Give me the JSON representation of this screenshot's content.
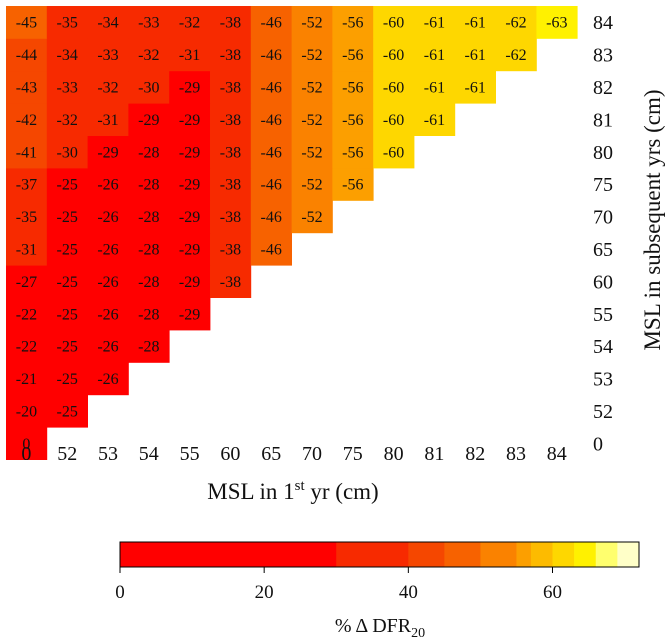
{
  "chart_data": {
    "type": "heatmap",
    "x_categories": [
      "0",
      "52",
      "53",
      "54",
      "55",
      "60",
      "65",
      "70",
      "75",
      "80",
      "81",
      "82",
      "83",
      "84"
    ],
    "y_categories": [
      "0",
      "52",
      "53",
      "54",
      "55",
      "60",
      "65",
      "70",
      "75",
      "80",
      "81",
      "82",
      "83",
      "84"
    ],
    "xlabel": "MSL in 1",
    "xlabel_sup": "st",
    "xlabel_suffix": " yr (cm)",
    "ylabel": "MSL in subsequent yrs (cm)",
    "cells": [
      [
        0
      ],
      [
        -20,
        -25
      ],
      [
        -21,
        -25,
        -26
      ],
      [
        -22,
        -25,
        -26,
        -28
      ],
      [
        -22,
        -25,
        -26,
        -28,
        -29
      ],
      [
        -27,
        -25,
        -26,
        -28,
        -29,
        -38
      ],
      [
        -31,
        -25,
        -26,
        -28,
        -29,
        -38,
        -46
      ],
      [
        -35,
        -25,
        -26,
        -28,
        -29,
        -38,
        -46,
        -52
      ],
      [
        -37,
        -25,
        -26,
        -28,
        -29,
        -38,
        -46,
        -52,
        -56
      ],
      [
        -41,
        -30,
        -29,
        -28,
        -29,
        -38,
        -46,
        -52,
        -56,
        -60
      ],
      [
        -42,
        -32,
        -31,
        -29,
        -29,
        -38,
        -46,
        -52,
        -56,
        -60,
        -61
      ],
      [
        -43,
        -33,
        -32,
        -30,
        -29,
        -38,
        -46,
        -52,
        -56,
        -60,
        -61,
        -61
      ],
      [
        -44,
        -34,
        -33,
        -32,
        -31,
        -38,
        -46,
        -52,
        -56,
        -60,
        -61,
        -61,
        -62
      ],
      [
        -45,
        -35,
        -34,
        -33,
        -32,
        -38,
        -46,
        -52,
        -56,
        -60,
        -61,
        -61,
        -62,
        -63
      ]
    ],
    "colorbar": {
      "label": "% Δ DFR",
      "label_sub": "20",
      "ticks": [
        "0",
        "20",
        "40",
        "60"
      ],
      "range": [
        0,
        72
      ],
      "colors": [
        "#ff0000",
        "#f72a00",
        "#f54700",
        "#f76200",
        "#fa8200",
        "#fc9f00",
        "#fdbb00",
        "#fed700",
        "#fff100",
        "#ffff6e",
        "#ffffc8"
      ],
      "bounds": [
        0,
        30,
        40,
        45,
        50,
        55,
        57,
        60,
        63,
        66,
        69,
        72
      ]
    }
  }
}
